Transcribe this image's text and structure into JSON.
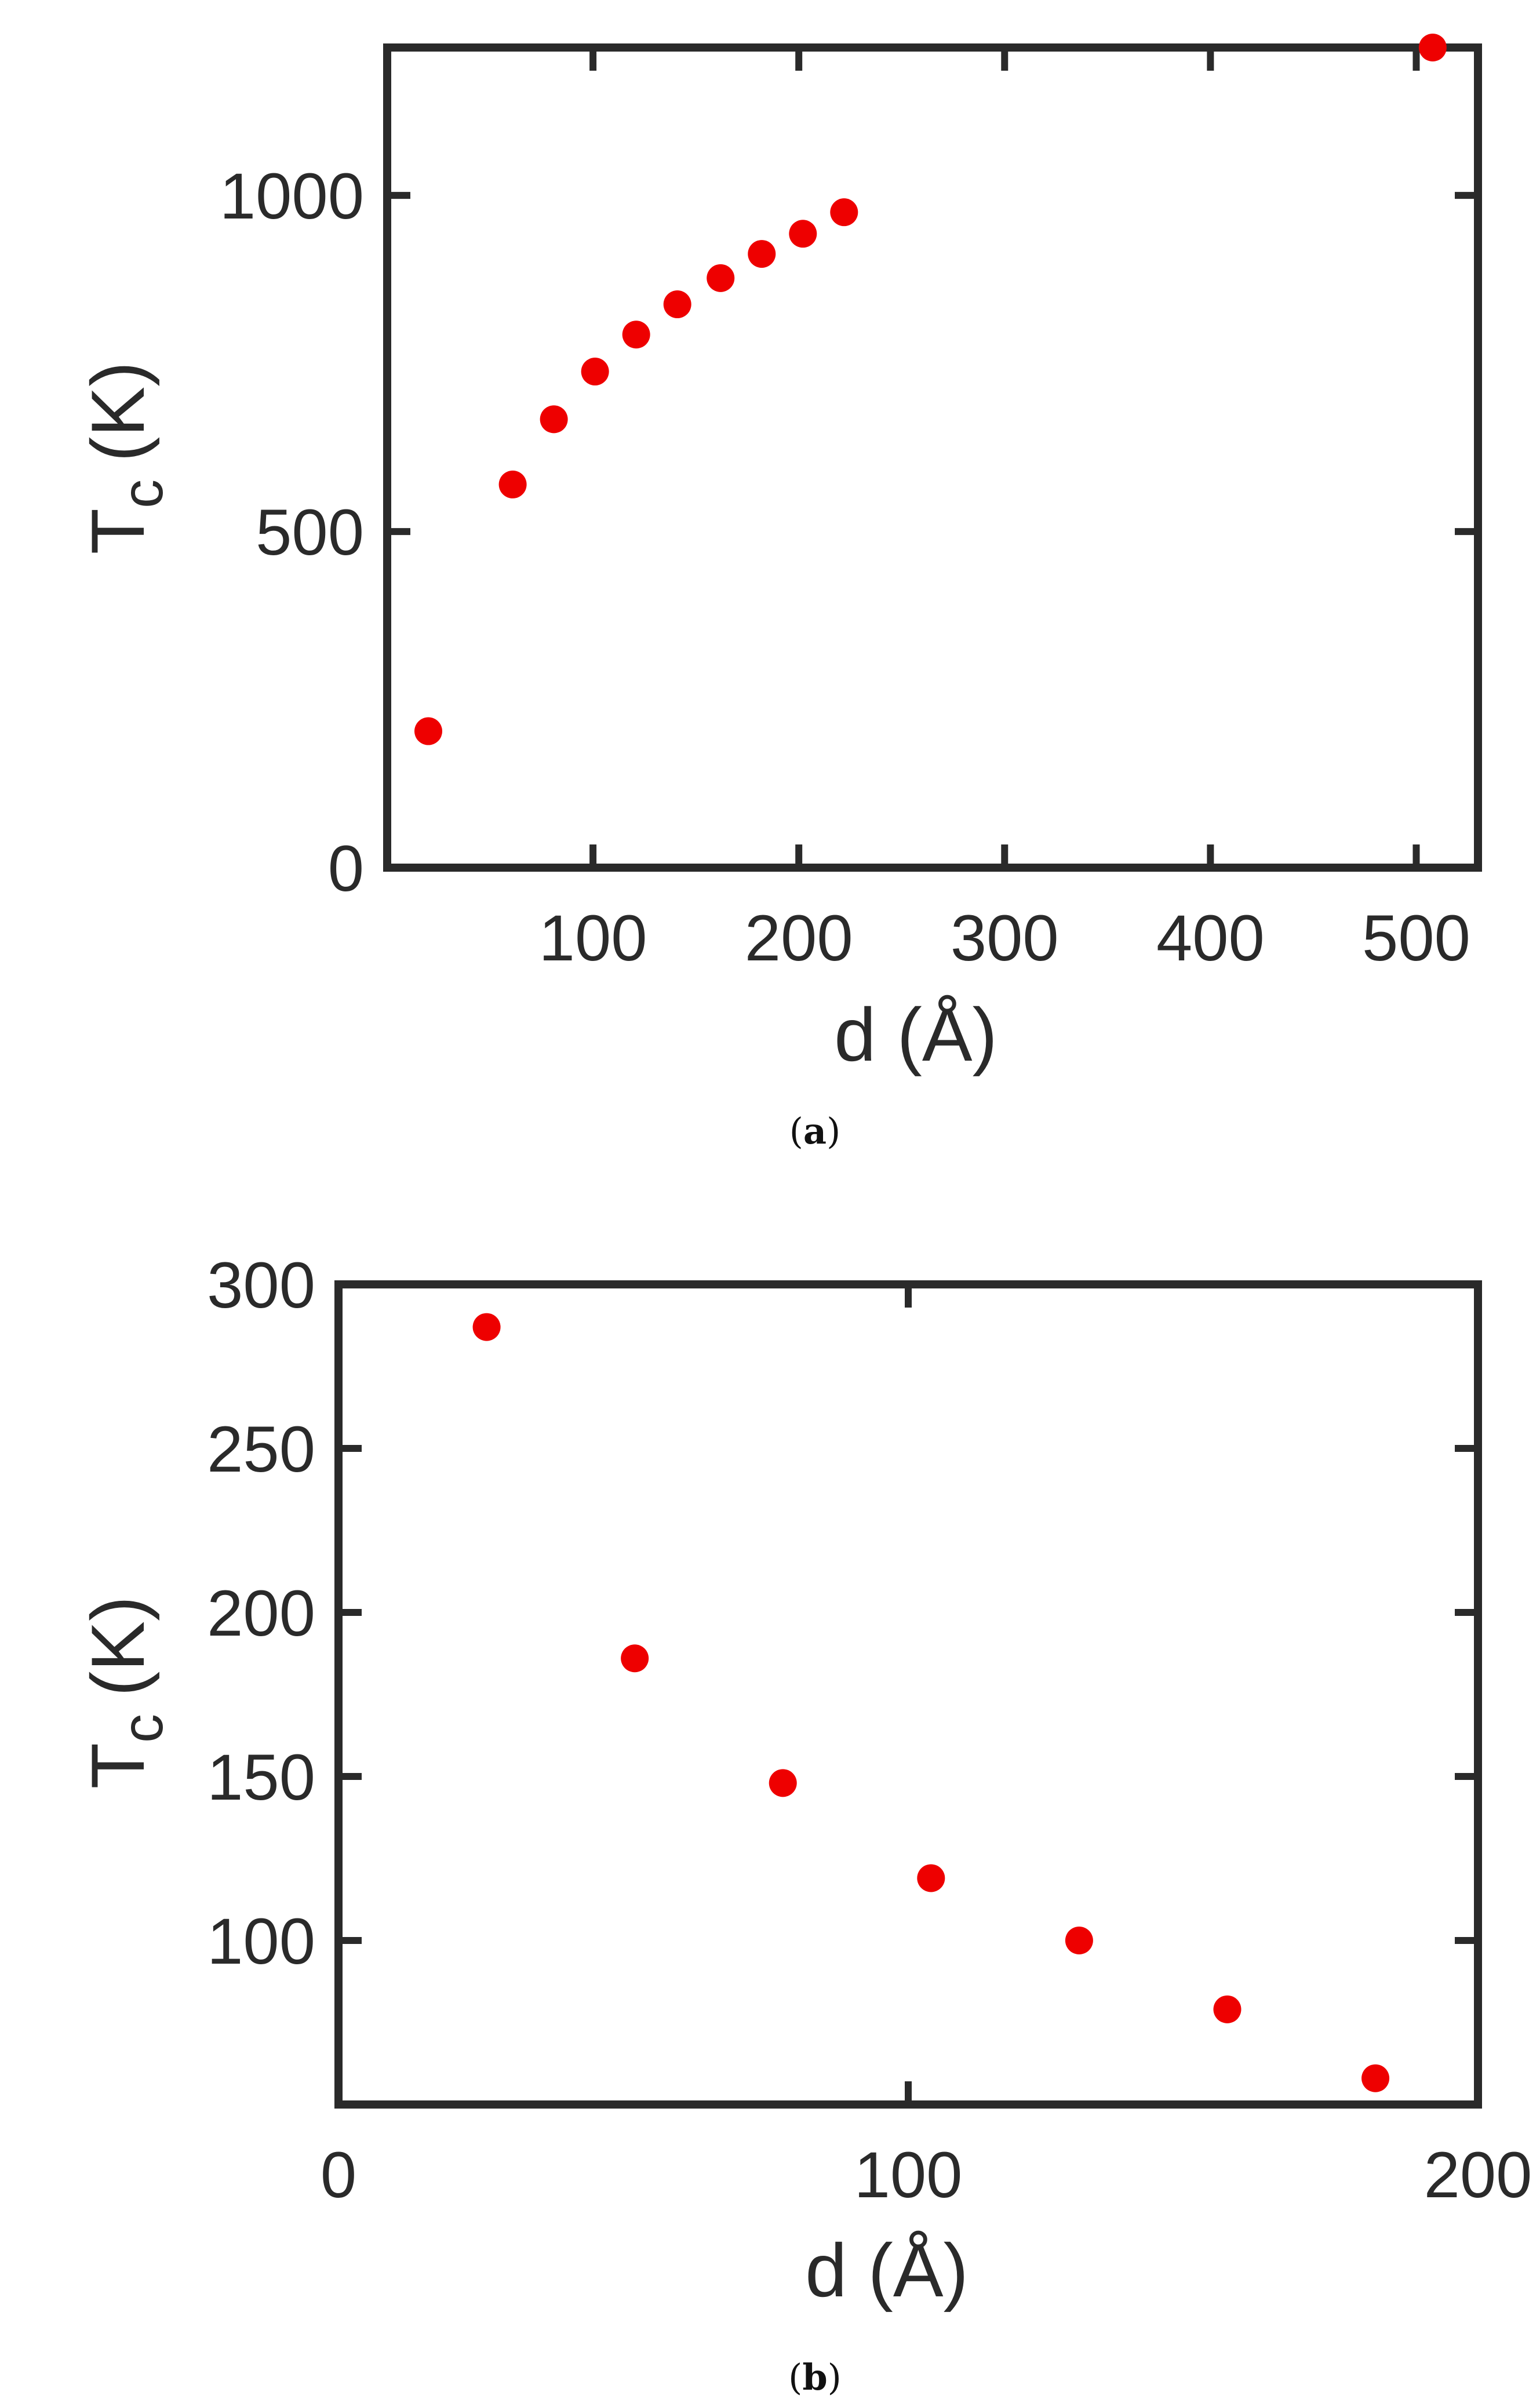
{
  "chart_data": [
    {
      "type": "scatter",
      "caption": "a",
      "xlabel": "d (Å)",
      "ylabel_main": "T",
      "ylabel_sub": "c",
      "ylabel_unit": "(K)",
      "xlim": [
        0,
        530
      ],
      "ylim": [
        0,
        1220
      ],
      "xticks": [
        100,
        200,
        300,
        400,
        500
      ],
      "xtick_labels": [
        "100",
        "200",
        "300",
        "400",
        "500"
      ],
      "yticks": [
        0,
        500,
        1000
      ],
      "ytick_labels": [
        "0",
        "500",
        "1000"
      ],
      "grid": false,
      "marker_color": "#ee0000",
      "points": [
        {
          "x": 20,
          "y": 203
        },
        {
          "x": 61,
          "y": 570
        },
        {
          "x": 81,
          "y": 667
        },
        {
          "x": 101,
          "y": 738
        },
        {
          "x": 121,
          "y": 793
        },
        {
          "x": 141,
          "y": 838
        },
        {
          "x": 162,
          "y": 877
        },
        {
          "x": 182,
          "y": 913
        },
        {
          "x": 202,
          "y": 943
        },
        {
          "x": 222,
          "y": 975
        },
        {
          "x": 508,
          "y": 1220
        }
      ]
    },
    {
      "type": "scatter",
      "caption": "b",
      "xlabel": "d (Å)",
      "ylabel_main": "T",
      "ylabel_sub": "c",
      "ylabel_unit": "(K)",
      "xlim": [
        0,
        200
      ],
      "ylim": [
        50,
        300
      ],
      "xticks": [
        0,
        100,
        200
      ],
      "xtick_labels": [
        "0",
        "100",
        "200"
      ],
      "yticks": [
        100,
        150,
        200,
        250,
        300
      ],
      "ytick_labels": [
        "100",
        "150",
        "200",
        "250",
        "300"
      ],
      "grid": false,
      "marker_color": "#ee0000",
      "points": [
        {
          "x": 26,
          "y": 287
        },
        {
          "x": 52,
          "y": 186
        },
        {
          "x": 78,
          "y": 148
        },
        {
          "x": 104,
          "y": 119
        },
        {
          "x": 130,
          "y": 100
        },
        {
          "x": 156,
          "y": 79
        },
        {
          "x": 182,
          "y": 58
        }
      ]
    }
  ]
}
